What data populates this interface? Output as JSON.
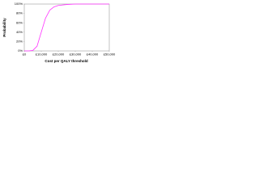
{
  "chart_data": {
    "type": "line",
    "x_label": "Cost per QALY threshold",
    "y_label": "Probability",
    "x": [
      0,
      2500,
      5000,
      7500,
      10000,
      12500,
      15000,
      17500,
      20000,
      25000,
      30000,
      35000,
      40000,
      45000,
      50000
    ],
    "series": [
      {
        "color": "#ff33ff",
        "values": [
          0,
          0,
          1,
          10,
          40,
          70,
          87,
          94,
          97,
          99,
          100,
          100,
          100,
          100,
          100
        ]
      }
    ],
    "xlim": [
      0,
      50000
    ],
    "xticks": [
      {
        "value": 0,
        "label": "£0"
      },
      {
        "value": 10000,
        "label": "£10,000"
      },
      {
        "value": 20000,
        "label": "£20,000"
      },
      {
        "value": 30000,
        "label": "£30,000"
      },
      {
        "value": 40000,
        "label": "£40,000"
      },
      {
        "value": 50000,
        "label": "£50,000"
      }
    ],
    "ylim": [
      0,
      100
    ],
    "yticks": [
      {
        "value": 0,
        "label": "0%"
      },
      {
        "value": 20,
        "label": "20%"
      },
      {
        "value": 40,
        "label": "40%"
      },
      {
        "value": 60,
        "label": "60%"
      },
      {
        "value": 80,
        "label": "80%"
      },
      {
        "value": 100,
        "label": "100%"
      }
    ],
    "grid": false
  }
}
